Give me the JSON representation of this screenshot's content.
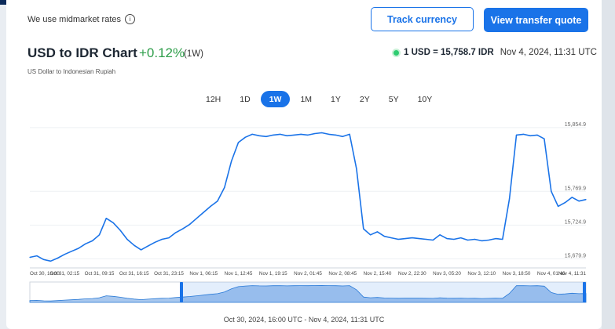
{
  "note": "We use midmarket rates",
  "buttons": {
    "track": "Track currency",
    "quote": "View transfer quote"
  },
  "header": {
    "title": "USD to IDR Chart",
    "change": "+0.12%",
    "period": "(1W)",
    "subtitle": "US Dollar to Indonesian Rupiah"
  },
  "rate": {
    "value": "1 USD = 15,758.7 IDR",
    "timestamp": "Nov 4, 2024, 11:31 UTC"
  },
  "tabs": [
    "12H",
    "1D",
    "1W",
    "1M",
    "1Y",
    "2Y",
    "5Y",
    "10Y"
  ],
  "active_tab": "1W",
  "chart_data": {
    "type": "line",
    "y_ticks": [
      "15,854.9",
      "15,769.9",
      "15,724.9",
      "15,679.9"
    ],
    "x_ticks": [
      "Oct 30, 16:00",
      "Oct 31, 02:15",
      "Oct 31, 09:15",
      "Oct 31, 16:15",
      "Oct 31, 23:15",
      "Nov 1, 06:15",
      "Nov 1, 12:45",
      "Nov 1, 19:15",
      "Nov 2, 01:45",
      "Nov 2, 08:45",
      "Nov 2, 15:40",
      "Nov 2, 22:30",
      "Nov 3, 05:20",
      "Nov 3, 12:10",
      "Nov 3, 18:50",
      "Nov 4, 01:40",
      "Nov 4, 11:31"
    ],
    "series": [
      {
        "values": [
          15682,
          15684,
          15679,
          15677,
          15681,
          15686,
          15690,
          15694,
          15700,
          15704,
          15712,
          15734,
          15728,
          15718,
          15706,
          15698,
          15692,
          15697,
          15702,
          15706,
          15708,
          15715,
          15720,
          15726,
          15734,
          15742,
          15750,
          15757,
          15775,
          15810,
          15835,
          15842,
          15846,
          15844,
          15843,
          15845,
          15846,
          15844,
          15845,
          15846,
          15845,
          15847,
          15848,
          15846,
          15845,
          15843,
          15846,
          15800,
          15720,
          15712,
          15716,
          15710,
          15708,
          15706,
          15707,
          15708,
          15707,
          15706,
          15705,
          15712,
          15707,
          15706,
          15708,
          15705,
          15706,
          15704,
          15705,
          15707,
          15706,
          15760,
          15845,
          15846,
          15844,
          15845,
          15840,
          15770,
          15750,
          15755,
          15762,
          15757,
          15759
        ]
      }
    ],
    "time_range": "Oct 30, 2024, 16:00 UTC - Nov 4, 2024, 11:31 UTC"
  }
}
